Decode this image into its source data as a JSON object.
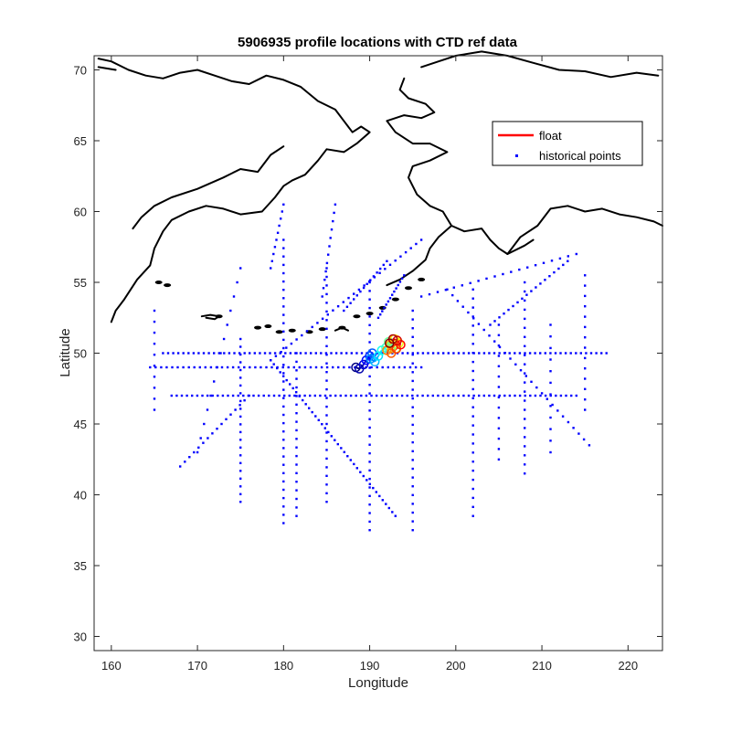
{
  "chart_data": {
    "type": "scatter",
    "title": "5906935 profile locations with CTD ref data",
    "xlabel": "Longitude",
    "ylabel": "Latitude",
    "xlim": [
      158,
      224
    ],
    "ylim": [
      29,
      71
    ],
    "xticks": [
      160,
      170,
      180,
      190,
      200,
      210,
      220
    ],
    "yticks": [
      30,
      35,
      40,
      45,
      50,
      55,
      60,
      65,
      70
    ],
    "grid": false,
    "legend_position": "top-right",
    "legend": [
      {
        "label": "float",
        "style": "line",
        "color": "#ff0000"
      },
      {
        "label": "historical points",
        "style": "marker",
        "color": "#0000ff"
      }
    ],
    "series": [
      {
        "name": "float",
        "color_scheme": "jet (blue→red along trajectory)",
        "x": [
          188.4,
          188.8,
          189.3,
          189.6,
          190.0,
          190.3,
          190.1,
          190.6,
          191.0,
          191.4,
          191.9,
          192.2,
          192.6,
          193.0,
          193.4,
          192.9,
          192.4,
          192.0,
          192.5,
          193.1,
          193.6,
          193.2,
          192.7,
          192.3
        ],
        "y": [
          49.0,
          48.9,
          49.2,
          49.5,
          49.8,
          50.0,
          49.6,
          49.4,
          49.8,
          50.2,
          50.4,
          50.8,
          50.5,
          50.3,
          50.7,
          51.0,
          50.6,
          50.2,
          50.0,
          50.3,
          50.6,
          50.9,
          51.0,
          50.7
        ]
      },
      {
        "name": "historical points",
        "color": "#0000ff",
        "tracks": [
          {
            "lon": [
              166,
              217.5
            ],
            "lat": [
              50.0,
              50.0
            ],
            "n": 88
          },
          {
            "lon": [
              164.5,
              196
            ],
            "lat": [
              49.0,
              49.0
            ],
            "n": 50
          },
          {
            "lon": [
              167,
              214
            ],
            "lat": [
              47.0,
              47.0
            ],
            "n": 80
          },
          {
            "lon": [
              165,
              165
            ],
            "lat": [
              46,
              53
            ],
            "n": 10
          },
          {
            "lon": [
              175,
              175
            ],
            "lat": [
              39.5,
              51
            ],
            "n": 22
          },
          {
            "lon": [
              180,
              180
            ],
            "lat": [
              38,
              58
            ],
            "n": 35
          },
          {
            "lon": [
              181.5,
              181.5
            ],
            "lat": [
              38.5,
              50
            ],
            "n": 20
          },
          {
            "lon": [
              185,
              185
            ],
            "lat": [
              39.5,
              56
            ],
            "n": 28
          },
          {
            "lon": [
              190,
              190
            ],
            "lat": [
              37.5,
              55
            ],
            "n": 30
          },
          {
            "lon": [
              195,
              195
            ],
            "lat": [
              37.5,
              53
            ],
            "n": 26
          },
          {
            "lon": [
              202,
              202
            ],
            "lat": [
              38.5,
              54.5
            ],
            "n": 26
          },
          {
            "lon": [
              208,
              208
            ],
            "lat": [
              41.5,
              55
            ],
            "n": 22
          },
          {
            "lon": [
              205,
              205
            ],
            "lat": [
              42.5,
              52
            ],
            "n": 14
          },
          {
            "lon": [
              211,
              211
            ],
            "lat": [
              43,
              52
            ],
            "n": 12
          },
          {
            "lon": [
              215,
              215
            ],
            "lat": [
              46,
              55.5
            ],
            "n": 14
          },
          {
            "lon": [
              178.5,
              193
            ],
            "lat": [
              49.5,
              38.5
            ],
            "n": 40
          },
          {
            "lon": [
              178.5,
              196
            ],
            "lat": [
              49.5,
              58
            ],
            "n": 30
          },
          {
            "lon": [
              199,
              215.5
            ],
            "lat": [
              54.5,
              43.5
            ],
            "n": 28
          },
          {
            "lon": [
              196,
              214
            ],
            "lat": [
              54,
              57
            ],
            "n": 20
          },
          {
            "lon": [
              168,
              176
            ],
            "lat": [
              42,
              47
            ],
            "n": 16
          },
          {
            "lon": [
              170,
              175
            ],
            "lat": [
              43,
              56
            ],
            "n": 14
          },
          {
            "lon": [
              184.5,
              186
            ],
            "lat": [
              54,
              60.5
            ],
            "n": 12
          },
          {
            "lon": [
              178.5,
              180
            ],
            "lat": [
              56,
              60.5
            ],
            "n": 10
          },
          {
            "lon": [
              191,
              194
            ],
            "lat": [
              52.5,
              55.5
            ],
            "n": 14
          },
          {
            "lon": [
              187,
              192
            ],
            "lat": [
              53,
              56.5
            ],
            "n": 14
          },
          {
            "lon": [
              204,
              213
            ],
            "lat": [
              52,
              56.5
            ],
            "n": 18
          }
        ]
      }
    ]
  }
}
